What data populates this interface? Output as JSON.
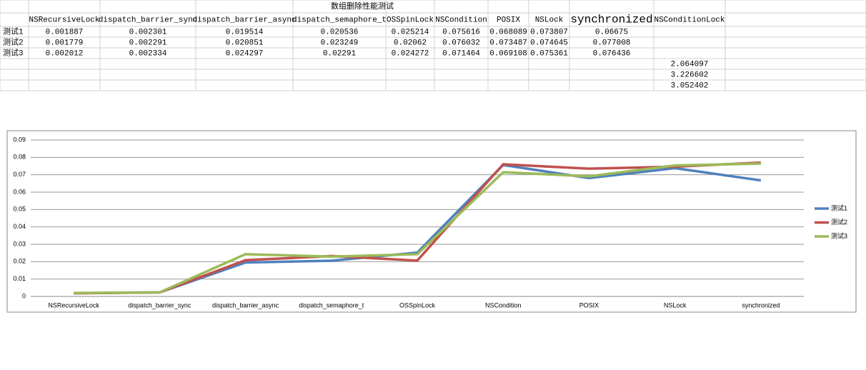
{
  "table": {
    "title": "数组删除性能测试",
    "columns": [
      "NSRecursiveLock",
      "dispatch_barrier_sync",
      "dispatch_barrier_async",
      "dispatch_semaphore_t",
      "OSSpinLock",
      "NSCondition",
      "POSIX",
      "NSLock",
      "synchronized",
      "NSConditionLock"
    ],
    "rows": [
      {
        "label": "测试1",
        "cells": [
          "0.001887",
          "0.002301",
          "0.019514",
          "0.020536",
          "0.025214",
          "0.075616",
          "0.068089",
          "0.073807",
          "0.06675"
        ]
      },
      {
        "label": "测试2",
        "cells": [
          "0.001779",
          "0.002291",
          "0.020851",
          "0.023249",
          "0.02062",
          "0.076032",
          "0.073487",
          "0.074645",
          "0.077008"
        ]
      },
      {
        "label": "测试3",
        "cells": [
          "0.002012",
          "0.002334",
          "0.024297",
          "0.02291",
          "0.024272",
          "0.071464",
          "0.069108",
          "0.075361",
          "0.076436"
        ]
      }
    ],
    "extra_cells": [
      "2.064097",
      "3.226602",
      "3.052402"
    ]
  },
  "chart_data": {
    "type": "line",
    "categories": [
      "NSRecursiveLock",
      "dispatch_barrier_sync",
      "dispatch_barrier_async",
      "dispatch_semaphore_t",
      "OSSpinLock",
      "NSCondition",
      "POSIX",
      "NSLock",
      "synchronized"
    ],
    "series": [
      {
        "name": "测试1",
        "color": "#4f81bd",
        "values": [
          0.001887,
          0.002301,
          0.019514,
          0.020536,
          0.025214,
          0.075616,
          0.068089,
          0.073807,
          0.06675
        ]
      },
      {
        "name": "测试2",
        "color": "#c0504d",
        "values": [
          0.001779,
          0.002291,
          0.020851,
          0.023249,
          0.02062,
          0.076032,
          0.073487,
          0.074645,
          0.077008
        ]
      },
      {
        "name": "测试3",
        "color": "#9bbb59",
        "values": [
          0.002012,
          0.002334,
          0.024297,
          0.02291,
          0.024272,
          0.071464,
          0.069108,
          0.075361,
          0.076436
        ]
      }
    ],
    "ylim": [
      0,
      0.09
    ],
    "yticks": [
      0,
      0.01,
      0.02,
      0.03,
      0.04,
      0.05,
      0.06,
      0.07,
      0.08,
      0.09
    ],
    "grid": true,
    "legend": "right"
  }
}
